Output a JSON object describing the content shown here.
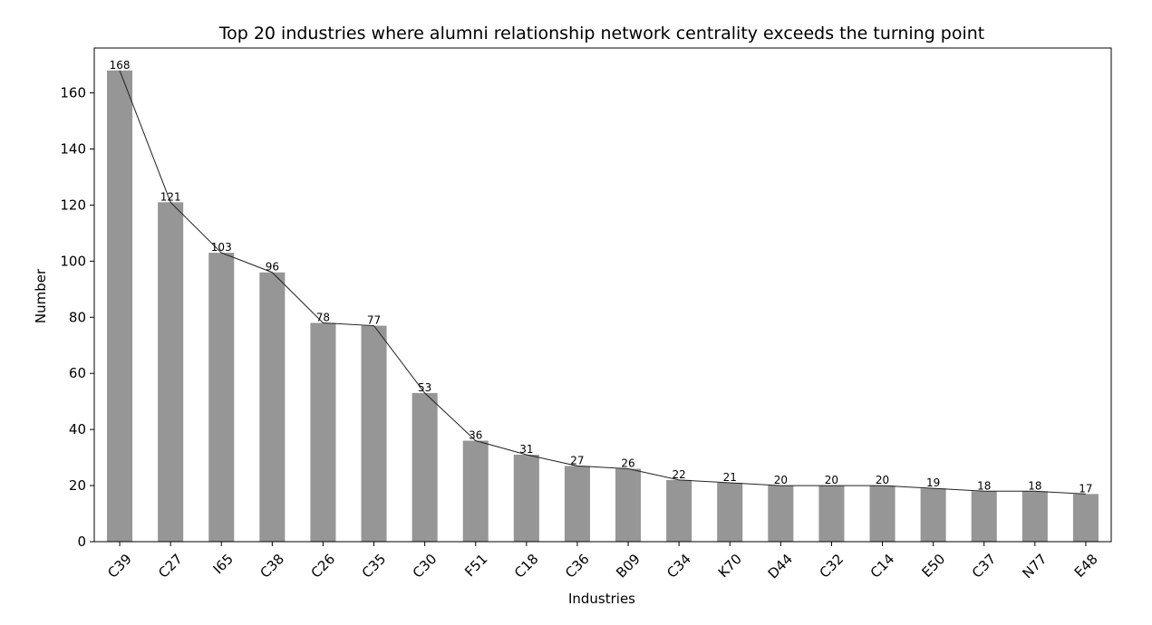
{
  "chart_data": {
    "type": "bar",
    "title": "Top 20 industries where alumni relationship network centrality exceeds the turning point",
    "xlabel": "Industries",
    "ylabel": "Number",
    "categories": [
      "C39",
      "C27",
      "I65",
      "C38",
      "C26",
      "C35",
      "C30",
      "F51",
      "C18",
      "C36",
      "B09",
      "C34",
      "K70",
      "D44",
      "C32",
      "C14",
      "E50",
      "C37",
      "N77",
      "E48"
    ],
    "values": [
      168,
      121,
      103,
      96,
      78,
      77,
      53,
      36,
      31,
      27,
      26,
      22,
      21,
      20,
      20,
      20,
      19,
      18,
      18,
      17
    ],
    "data_labels": [
      "168",
      "121",
      "103",
      "96",
      "78",
      "77",
      "53",
      "36",
      "31",
      "27",
      "26",
      "22",
      "21",
      "20",
      "20",
      "20",
      "19",
      "18",
      "18",
      "17"
    ],
    "ylim": [
      0,
      176
    ],
    "yticks": [
      0,
      20,
      40,
      60,
      80,
      100,
      120,
      140,
      160
    ],
    "ytick_labels": [
      "0",
      "20",
      "40",
      "60",
      "80",
      "100",
      "120",
      "140",
      "160"
    ],
    "grid": false,
    "legend": "none",
    "overlay_line": true,
    "colors": {
      "bar": "#969696",
      "line": "#222222",
      "axis": "#000000"
    }
  }
}
